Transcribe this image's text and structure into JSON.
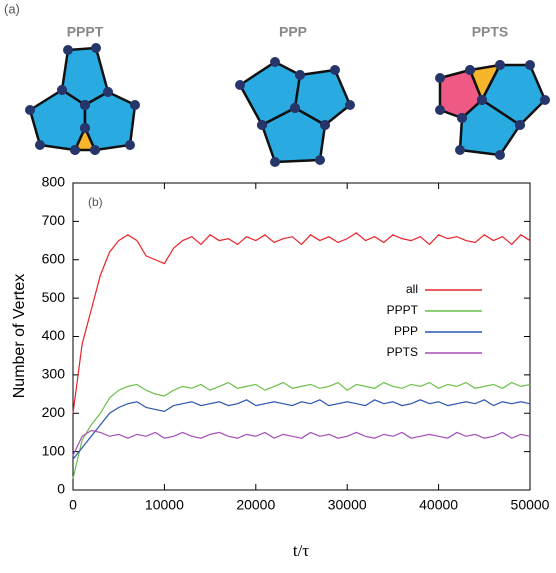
{
  "panel_a": {
    "label": "(a)",
    "diagrams": [
      "PPPT",
      "PPP",
      "PPTS"
    ]
  },
  "chart_data": {
    "type": "line",
    "panel_label": "(b)",
    "x_label": "t/τ",
    "y_label": "Number of Vertex",
    "x": [
      0,
      1000,
      2000,
      3000,
      4000,
      5000,
      6000,
      7000,
      8000,
      9000,
      10000,
      11000,
      12000,
      13000,
      14000,
      15000,
      16000,
      17000,
      18000,
      19000,
      20000,
      21000,
      22000,
      23000,
      24000,
      25000,
      26000,
      27000,
      28000,
      29000,
      30000,
      31000,
      32000,
      33000,
      34000,
      35000,
      36000,
      37000,
      38000,
      39000,
      40000,
      41000,
      42000,
      43000,
      44000,
      45000,
      46000,
      47000,
      48000,
      49000,
      50000
    ],
    "series": [
      {
        "name": "all",
        "color": "#e8232a",
        "values": [
          200,
          380,
          470,
          560,
          620,
          650,
          665,
          650,
          610,
          600,
          590,
          630,
          650,
          660,
          640,
          665,
          650,
          655,
          640,
          660,
          650,
          665,
          645,
          655,
          660,
          640,
          665,
          650,
          660,
          645,
          655,
          670,
          650,
          660,
          645,
          665,
          655,
          650,
          660,
          640,
          665,
          655,
          660,
          650,
          645,
          665,
          650,
          660,
          640,
          665,
          650
        ]
      },
      {
        "name": "PPPT",
        "color": "#6cc04a",
        "values": [
          30,
          130,
          170,
          200,
          240,
          260,
          270,
          275,
          260,
          250,
          245,
          260,
          270,
          265,
          275,
          260,
          270,
          280,
          265,
          270,
          275,
          260,
          270,
          280,
          265,
          270,
          275,
          265,
          270,
          280,
          260,
          275,
          270,
          265,
          280,
          270,
          265,
          275,
          270,
          280,
          265,
          275,
          270,
          280,
          265,
          270,
          275,
          265,
          280,
          270,
          275
        ]
      },
      {
        "name": "PPP",
        "color": "#2a56b0",
        "values": [
          80,
          110,
          140,
          170,
          200,
          215,
          225,
          230,
          215,
          210,
          205,
          220,
          225,
          230,
          220,
          225,
          230,
          220,
          225,
          235,
          220,
          225,
          230,
          225,
          220,
          230,
          225,
          235,
          220,
          225,
          230,
          225,
          220,
          235,
          225,
          230,
          220,
          225,
          235,
          225,
          230,
          220,
          225,
          230,
          225,
          235,
          220,
          230,
          225,
          230,
          225
        ]
      },
      {
        "name": "PPTS",
        "color": "#a64fb8",
        "values": [
          90,
          140,
          155,
          150,
          140,
          145,
          135,
          145,
          140,
          150,
          135,
          140,
          150,
          140,
          135,
          145,
          150,
          140,
          135,
          145,
          140,
          150,
          135,
          145,
          140,
          135,
          150,
          140,
          145,
          135,
          140,
          150,
          140,
          135,
          145,
          140,
          150,
          135,
          140,
          145,
          140,
          135,
          150,
          140,
          145,
          135,
          140,
          150,
          135,
          145,
          140
        ]
      }
    ],
    "xlim": [
      0,
      50000
    ],
    "ylim": [
      0,
      800
    ],
    "xticks": [
      0,
      10000,
      20000,
      30000,
      40000,
      50000
    ],
    "yticks": [
      0,
      100,
      200,
      300,
      400,
      500,
      600,
      700,
      800
    ],
    "legend": "right",
    "grid": false
  }
}
